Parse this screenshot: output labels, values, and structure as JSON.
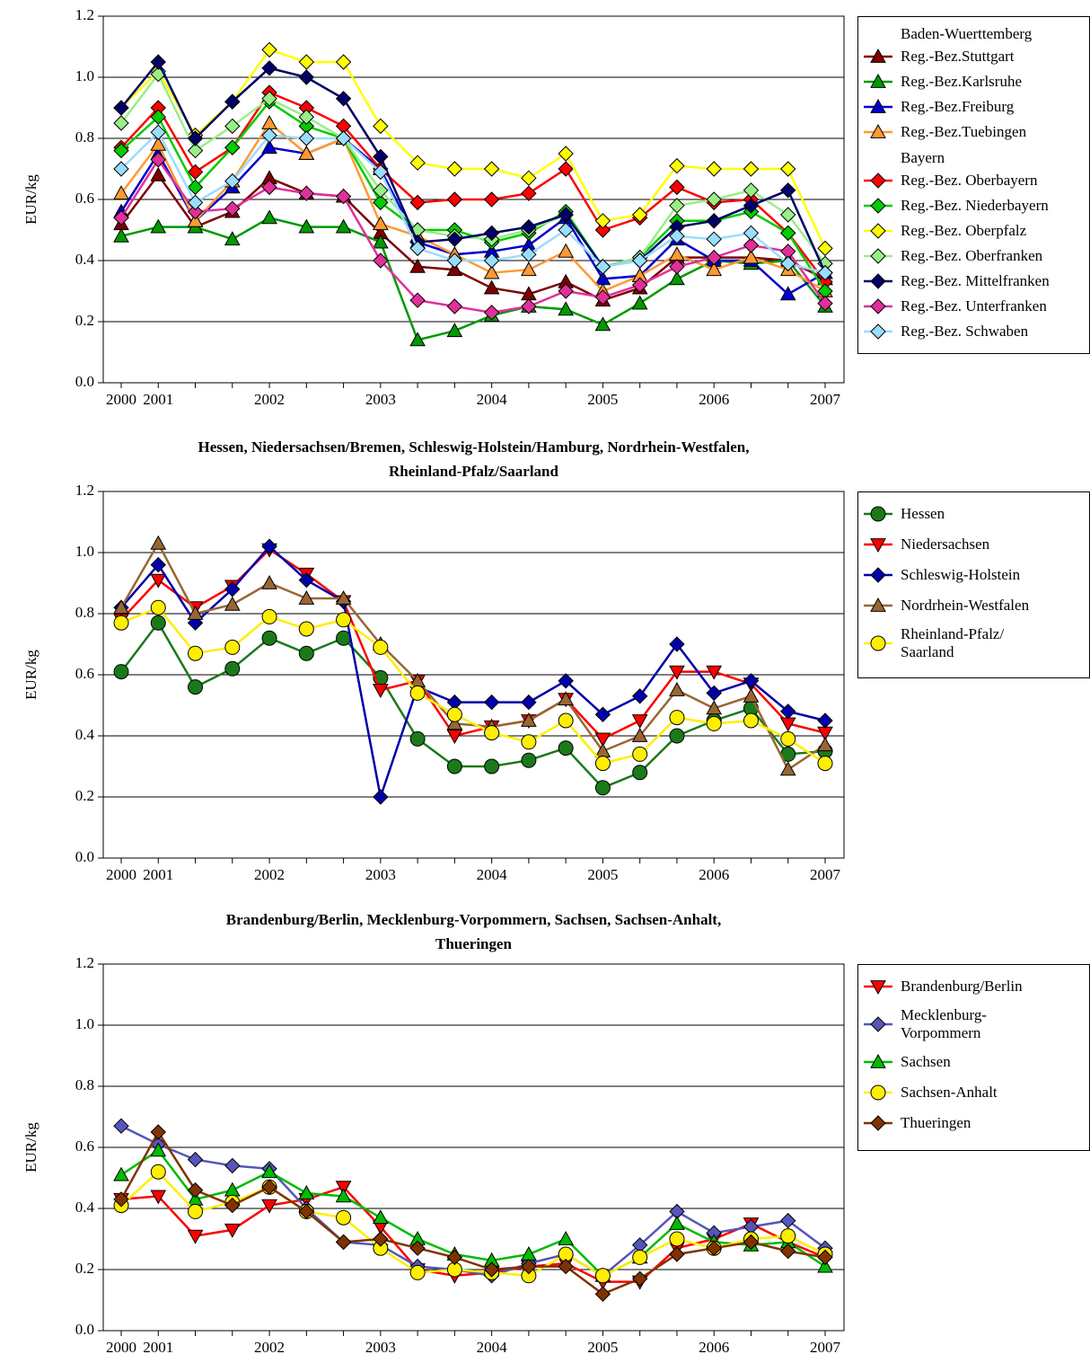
{
  "chart_data": [
    {
      "type": "line",
      "y_label": "EUR/kg",
      "categories": [
        "2000",
        "2001",
        null,
        null,
        "2002",
        null,
        null,
        "2003",
        null,
        null,
        "2004",
        null,
        null,
        "2005",
        null,
        null,
        "2006",
        null,
        null,
        "2007"
      ],
      "ylim": [
        0,
        1.2
      ],
      "yticks": [
        {
          "value": 0,
          "label": "0.0"
        },
        0.2,
        0.4,
        0.6,
        0.8,
        {
          "value": 1,
          "label": "1.0"
        },
        1.2
      ],
      "grid": true,
      "series_groups": [
        {
          "title": "Baden-Wuerttemberg",
          "series": [
            {
              "name": "Reg.-Bez.Stuttgart",
              "color": "#800000",
              "marker": "triangle",
              "values": [
                0.52,
                0.68,
                0.51,
                0.56,
                0.67,
                0.62,
                0.61,
                0.49,
                0.38,
                0.37,
                0.31,
                0.29,
                0.33,
                0.27,
                0.31,
                0.41,
                0.41,
                0.41,
                0.4,
                0.34
              ]
            },
            {
              "name": "Reg.-Bez.Karlsruhe",
              "color": "#009900",
              "marker": "triangle",
              "values": [
                0.48,
                0.51,
                0.51,
                0.47,
                0.54,
                0.51,
                0.51,
                0.46,
                0.14,
                0.17,
                0.22,
                0.25,
                0.24,
                0.19,
                0.26,
                0.34,
                0.4,
                0.39,
                0.4,
                0.25
              ]
            },
            {
              "name": "Reg.-Bez.Freiburg",
              "color": "#0000cc",
              "marker": "triangle",
              "values": [
                0.56,
                0.75,
                0.53,
                0.64,
                0.77,
                0.75,
                0.8,
                0.7,
                0.46,
                0.42,
                0.43,
                0.45,
                0.54,
                0.34,
                0.35,
                0.47,
                0.4,
                0.4,
                0.29,
                0.36
              ]
            },
            {
              "name": "Reg.-Bez.Tuebingen",
              "color": "#ff9933",
              "marker": "triangle",
              "values": [
                0.62,
                0.78,
                0.53,
                0.66,
                0.85,
                0.75,
                0.8,
                0.52,
                0.48,
                0.42,
                0.36,
                0.37,
                0.43,
                0.3,
                0.35,
                0.42,
                0.37,
                0.41,
                0.37,
                0.3
              ]
            }
          ]
        },
        {
          "title": "Bayern",
          "series": [
            {
              "name": "Reg.-Bez. Oberbayern",
              "color": "#ff0000",
              "marker": "diamond",
              "values": [
                0.77,
                0.9,
                0.69,
                0.77,
                0.95,
                0.9,
                0.84,
                0.7,
                0.59,
                0.6,
                0.6,
                0.62,
                0.7,
                0.5,
                0.54,
                0.64,
                0.59,
                0.6,
                0.49,
                0.33
              ]
            },
            {
              "name": "Reg.-Bez. Niederbayern",
              "color": "#00cc00",
              "marker": "diamond",
              "values": [
                0.76,
                0.87,
                0.64,
                0.77,
                0.92,
                0.84,
                0.8,
                0.59,
                0.5,
                0.5,
                0.46,
                0.49,
                0.56,
                0.38,
                0.41,
                0.53,
                0.53,
                0.56,
                0.49,
                0.3
              ]
            },
            {
              "name": "Reg.-Bez. Oberpfalz",
              "color": "#ffff00",
              "marker": "diamond",
              "values": [
                0.9,
                1.02,
                0.81,
                0.92,
                1.09,
                1.05,
                1.05,
                0.84,
                0.72,
                0.7,
                0.7,
                0.67,
                0.75,
                0.53,
                0.55,
                0.71,
                0.7,
                0.7,
                0.7,
                0.44
              ]
            },
            {
              "name": "Reg.-Bez. Oberfranken",
              "color": "#99ee88",
              "marker": "diamond",
              "values": [
                0.85,
                1.01,
                0.76,
                0.84,
                0.93,
                0.87,
                0.8,
                0.63,
                0.5,
                0.48,
                0.47,
                0.5,
                0.55,
                0.38,
                0.41,
                0.58,
                0.6,
                0.63,
                0.55,
                0.39
              ]
            },
            {
              "name": "Reg.-Bez. Mittelfranken",
              "color": "#000066",
              "marker": "diamond",
              "values": [
                0.9,
                1.05,
                0.8,
                0.92,
                1.03,
                1.0,
                0.93,
                0.74,
                0.46,
                0.47,
                0.49,
                0.51,
                0.55,
                0.38,
                0.4,
                0.51,
                0.53,
                0.58,
                0.63,
                0.36
              ]
            },
            {
              "name": "Reg.-Bez. Unterfranken",
              "color": "#e0309a",
              "marker": "diamond",
              "values": [
                0.54,
                0.73,
                0.56,
                0.57,
                0.64,
                0.62,
                0.61,
                0.4,
                0.27,
                0.25,
                0.23,
                0.25,
                0.3,
                0.28,
                0.32,
                0.38,
                0.41,
                0.45,
                0.43,
                0.26
              ]
            },
            {
              "name": "Reg.-Bez. Schwaben",
              "color": "#99ddff",
              "marker": "diamond",
              "values": [
                0.7,
                0.82,
                0.59,
                0.66,
                0.81,
                0.8,
                0.8,
                0.69,
                0.44,
                0.4,
                0.4,
                0.42,
                0.5,
                0.38,
                0.4,
                0.48,
                0.47,
                0.49,
                0.39,
                0.36
              ]
            }
          ]
        }
      ]
    },
    {
      "type": "line",
      "title": "Hessen, Niedersachsen/Bremen, Schleswig-Holstein/Hamburg, Nordrhein-Westfalen, Rheinland-Pfalz/Saarland",
      "y_label": "EUR/kg",
      "categories": [
        "2000",
        "2001",
        null,
        null,
        "2002",
        null,
        null,
        "2003",
        null,
        null,
        "2004",
        null,
        null,
        "2005",
        null,
        null,
        "2006",
        null,
        null,
        "2007"
      ],
      "ylim": [
        0,
        1.2
      ],
      "yticks": [
        {
          "value": 0,
          "label": "0.0"
        },
        0.2,
        0.4,
        0.6,
        0.8,
        {
          "value": 1,
          "label": "1.0"
        },
        1.2
      ],
      "grid": true,
      "series": [
        {
          "name": "Hessen",
          "color": "#1a7a1a",
          "marker": "circle",
          "values": [
            0.61,
            0.77,
            0.56,
            0.62,
            0.72,
            0.67,
            0.72,
            0.59,
            0.39,
            0.3,
            0.3,
            0.32,
            0.36,
            0.23,
            0.28,
            0.4,
            0.45,
            0.49,
            0.34,
            0.35
          ]
        },
        {
          "name": "Niedersachsen",
          "color": "#ff0000",
          "marker": "triangle-down",
          "values": [
            0.78,
            0.91,
            0.82,
            0.89,
            1.01,
            0.93,
            0.84,
            0.55,
            0.58,
            0.4,
            0.43,
            0.45,
            0.52,
            0.39,
            0.45,
            0.61,
            0.61,
            0.57,
            0.44,
            0.41
          ]
        },
        {
          "name": "Schleswig-Holstein",
          "color": "#0000aa",
          "marker": "diamond",
          "values": [
            0.82,
            0.96,
            0.77,
            0.88,
            1.02,
            0.91,
            0.84,
            0.2,
            0.56,
            0.51,
            0.51,
            0.51,
            0.58,
            0.47,
            0.53,
            0.7,
            0.54,
            0.58,
            0.48,
            0.45
          ]
        },
        {
          "name": "Nordrhein-Westfalen",
          "color": "#996633",
          "marker": "triangle",
          "values": [
            0.82,
            1.03,
            0.8,
            0.83,
            0.9,
            0.85,
            0.85,
            0.7,
            0.58,
            0.44,
            0.43,
            0.45,
            0.52,
            0.35,
            0.4,
            0.55,
            0.49,
            0.53,
            0.29,
            0.37
          ]
        },
        {
          "name": "Rheinland-Pfalz/ Saarland",
          "color": "#ffee00",
          "marker": "circle",
          "values": [
            0.77,
            0.82,
            0.67,
            0.69,
            0.79,
            0.75,
            0.78,
            0.69,
            0.54,
            0.47,
            0.41,
            0.38,
            0.45,
            0.31,
            0.34,
            0.46,
            0.44,
            0.45,
            0.39,
            0.31
          ]
        }
      ]
    },
    {
      "type": "line",
      "title": "Brandenburg/Berlin, Mecklenburg-Vorpommern, Sachsen, Sachsen-Anhalt, Thueringen",
      "y_label": "EUR/kg",
      "categories": [
        "2000",
        "2001",
        null,
        null,
        "2002",
        null,
        null,
        "2003",
        null,
        null,
        "2004",
        null,
        null,
        "2005",
        null,
        null,
        "2006",
        null,
        null,
        "2007"
      ],
      "ylim": [
        0,
        1.2
      ],
      "yticks": [
        {
          "value": 0,
          "label": "0.0"
        },
        0.2,
        0.4,
        0.6,
        0.8,
        {
          "value": 1,
          "label": "1.0"
        },
        1.2
      ],
      "grid": true,
      "series": [
        {
          "name": "Brandenburg/Berlin",
          "color": "#ff0000",
          "marker": "triangle-down",
          "values": [
            0.43,
            0.44,
            0.31,
            0.33,
            0.41,
            0.43,
            0.47,
            0.34,
            0.2,
            0.18,
            0.19,
            0.21,
            0.22,
            0.16,
            0.16,
            0.27,
            0.3,
            0.35,
            0.29,
            0.24
          ]
        },
        {
          "name": "Mecklenburg-Vorpommern",
          "color": "#5555bb",
          "marker": "diamond",
          "values": [
            0.67,
            0.61,
            0.56,
            0.54,
            0.53,
            0.4,
            0.29,
            0.28,
            0.21,
            0.2,
            0.18,
            0.22,
            0.25,
            0.18,
            0.28,
            0.39,
            0.32,
            0.34,
            0.36,
            0.27
          ]
        },
        {
          "name": "Sachsen",
          "color": "#00bb00",
          "marker": "triangle",
          "values": [
            0.51,
            0.59,
            0.43,
            0.46,
            0.52,
            0.45,
            0.44,
            0.37,
            0.3,
            0.25,
            0.23,
            0.25,
            0.3,
            0.18,
            0.24,
            0.35,
            0.29,
            0.28,
            0.29,
            0.21
          ]
        },
        {
          "name": "Sachsen-Anhalt",
          "color": "#ffee00",
          "marker": "circle",
          "values": [
            0.41,
            0.52,
            0.39,
            0.42,
            0.47,
            0.39,
            0.37,
            0.27,
            0.19,
            0.2,
            0.19,
            0.18,
            0.25,
            0.18,
            0.24,
            0.3,
            0.27,
            0.3,
            0.31,
            0.25
          ]
        },
        {
          "name": "Thueringen",
          "color": "#803300",
          "marker": "diamond",
          "values": [
            0.43,
            0.65,
            0.46,
            0.41,
            0.47,
            0.39,
            0.29,
            0.3,
            0.27,
            0.24,
            0.2,
            0.21,
            0.21,
            0.12,
            0.17,
            0.25,
            0.27,
            0.29,
            0.26,
            0.24
          ]
        }
      ]
    }
  ]
}
